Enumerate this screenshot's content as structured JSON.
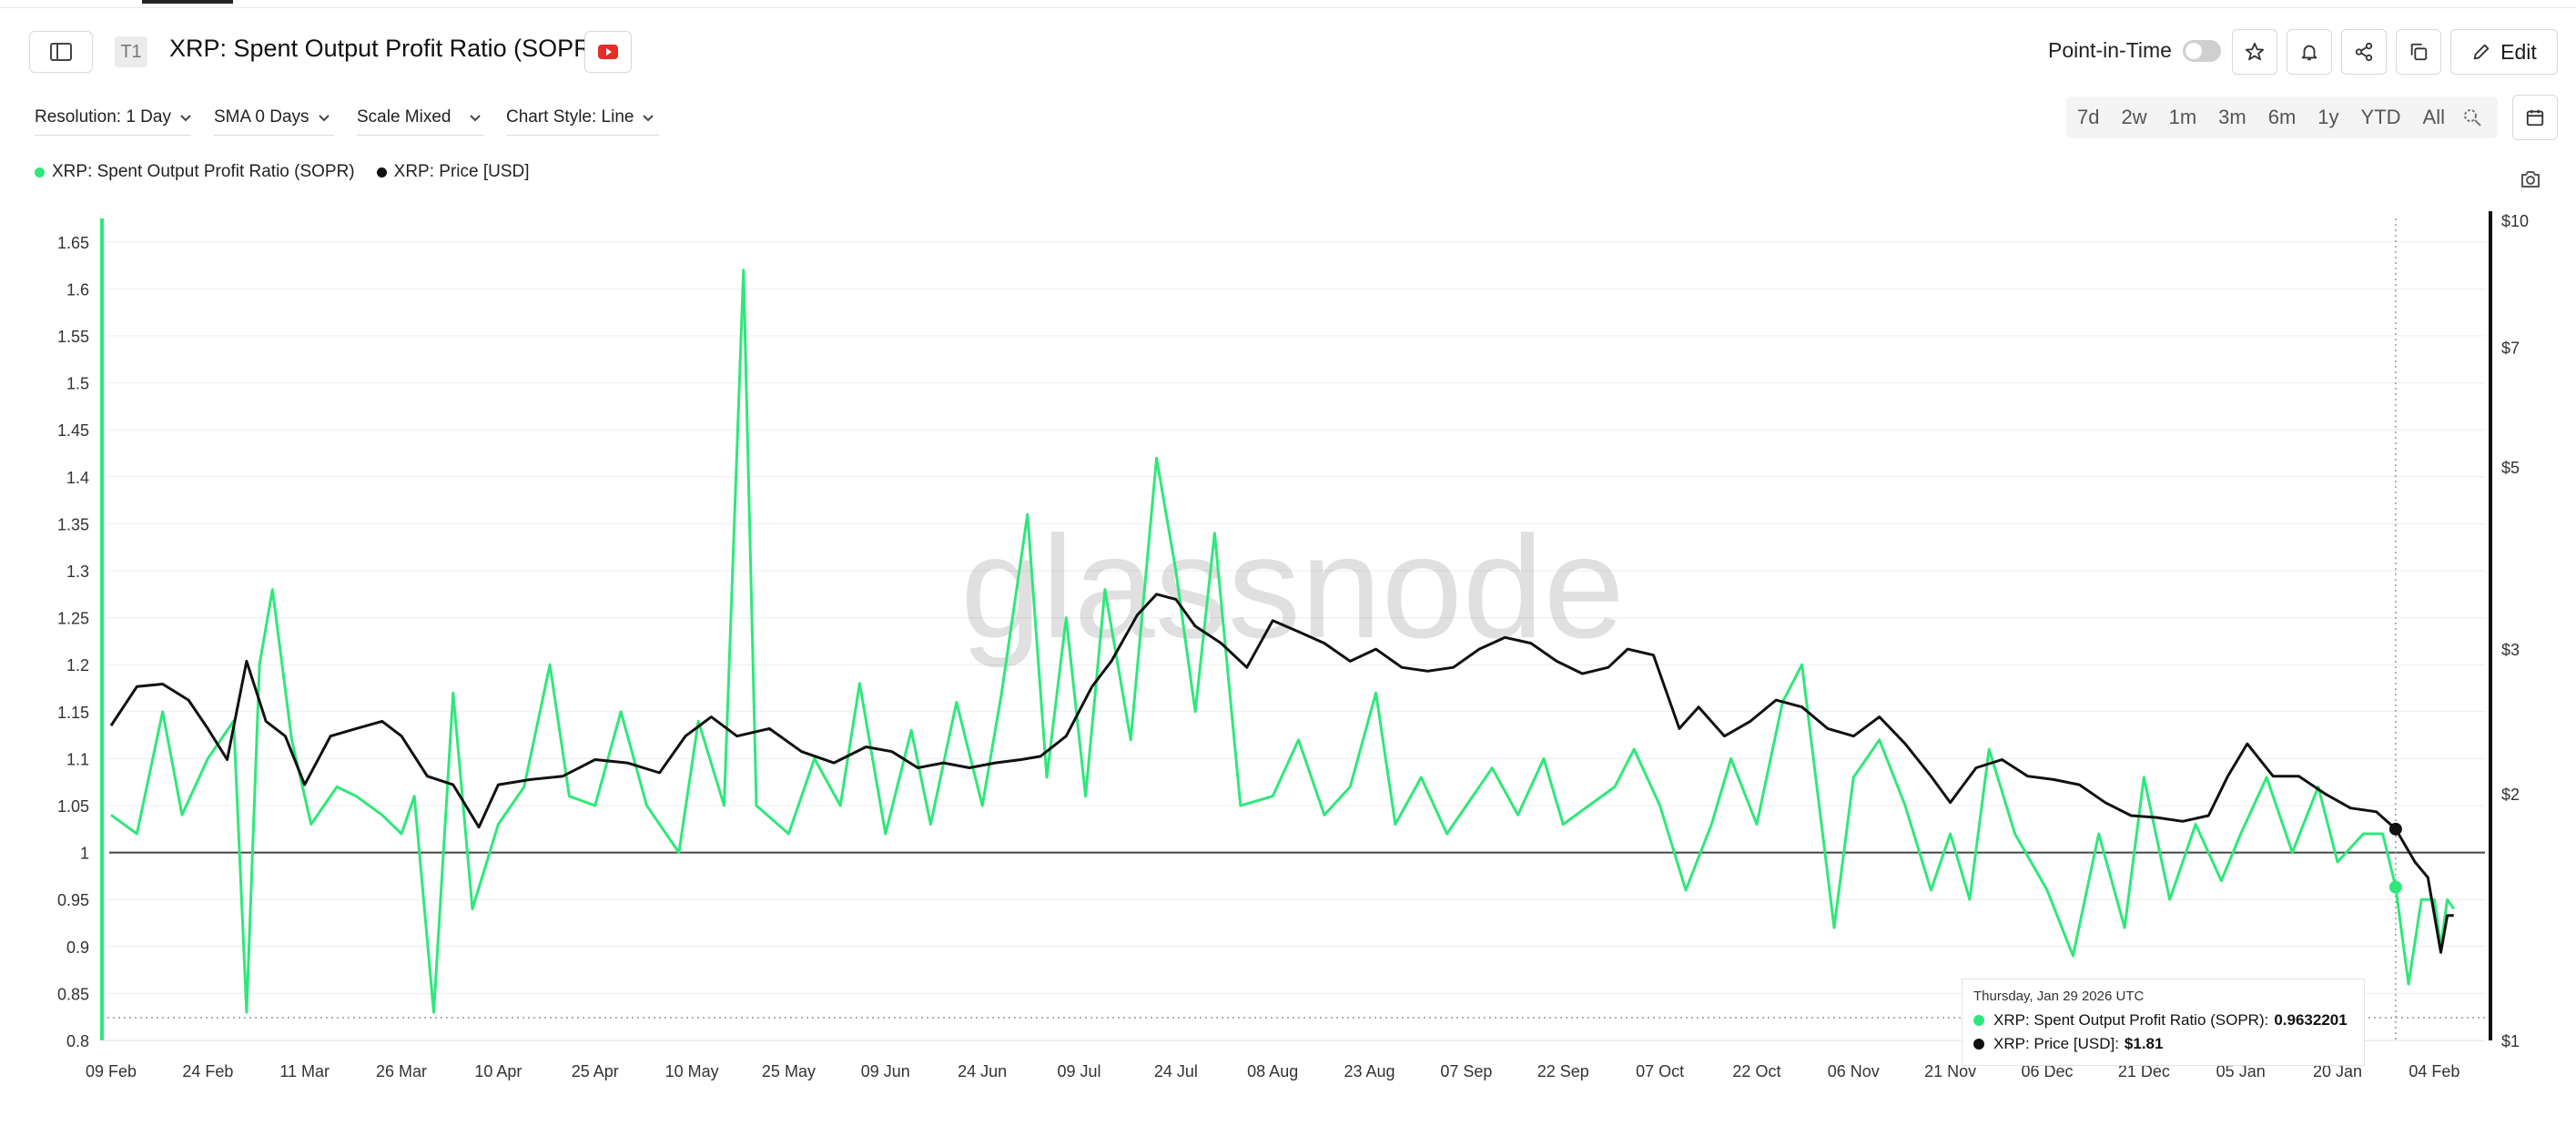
{
  "header": {
    "badge": "T1",
    "title": "XRP: Spent Output Profit Ratio (SOPR)",
    "point_in_time_label": "Point-in-Time",
    "edit_label": "Edit"
  },
  "toolbar": {
    "resolution": "Resolution: 1 Day",
    "sma": "SMA 0 Days",
    "scale": "Scale Mixed",
    "chart_style": "Chart Style: Line"
  },
  "ranges": [
    "7d",
    "2w",
    "1m",
    "3m",
    "6m",
    "1y",
    "YTD",
    "All"
  ],
  "watermark": "glassnode",
  "tooltip": {
    "date": "Thursday, Jan 29 2026 UTC",
    "sopr_label": "XRP: Spent Output Profit Ratio (SOPR):",
    "sopr_value": "0.9632201",
    "price_label": "XRP: Price [USD]:",
    "price_value": "$1.81"
  },
  "colors": {
    "sopr": "#2ee87a",
    "price": "#111111",
    "baseline": "#444444"
  },
  "chart_data": {
    "type": "line",
    "x_axis": {
      "type": "date",
      "tick_labels": [
        "09 Feb",
        "24 Feb",
        "11 Mar",
        "26 Mar",
        "10 Apr",
        "25 Apr",
        "10 May",
        "25 May",
        "09 Jun",
        "24 Jun",
        "09 Jul",
        "24 Jul",
        "08 Aug",
        "23 Aug",
        "07 Sep",
        "22 Sep",
        "07 Oct",
        "22 Oct",
        "06 Nov",
        "21 Nov",
        "06 Dec",
        "21 Dec",
        "05 Jan",
        "20 Jan",
        "04 Feb"
      ]
    },
    "y_left": {
      "ticks": [
        "0.8",
        "0.85",
        "0.9",
        "0.95",
        "1",
        "1.05",
        "1.1",
        "1.15",
        "1.2",
        "1.25",
        "1.3",
        "1.35",
        "1.4",
        "1.45",
        "1.5",
        "1.55",
        "1.6",
        "1.65"
      ],
      "ylim": [
        0.8,
        1.65
      ]
    },
    "y_right": {
      "scale": "log",
      "ticks": [
        "$1",
        "$2",
        "$3",
        "$5",
        "$7",
        "$10"
      ],
      "ylim": [
        1,
        10
      ]
    },
    "reference_line": 1,
    "series": [
      {
        "name": "XRP: Spent Output Profit Ratio (SOPR)",
        "axis": "left",
        "color": "#2ee87a",
        "points": [
          [
            "09 Feb",
            1.04
          ],
          [
            "13 Feb",
            1.02
          ],
          [
            "17 Feb",
            1.15
          ],
          [
            "20 Feb",
            1.04
          ],
          [
            "24 Feb",
            1.1
          ],
          [
            "28 Feb",
            1.14
          ],
          [
            "02 Mar",
            0.83
          ],
          [
            "04 Mar",
            1.2
          ],
          [
            "06 Mar",
            1.28
          ],
          [
            "09 Mar",
            1.12
          ],
          [
            "12 Mar",
            1.03
          ],
          [
            "16 Mar",
            1.07
          ],
          [
            "19 Mar",
            1.06
          ],
          [
            "23 Mar",
            1.04
          ],
          [
            "26 Mar",
            1.02
          ],
          [
            "28 Mar",
            1.06
          ],
          [
            "31 Mar",
            0.83
          ],
          [
            "03 Apr",
            1.17
          ],
          [
            "06 Apr",
            0.94
          ],
          [
            "10 Apr",
            1.03
          ],
          [
            "14 Apr",
            1.07
          ],
          [
            "18 Apr",
            1.2
          ],
          [
            "21 Apr",
            1.06
          ],
          [
            "25 Apr",
            1.05
          ],
          [
            "29 Apr",
            1.15
          ],
          [
            "03 May",
            1.05
          ],
          [
            "08 May",
            1.0
          ],
          [
            "11 May",
            1.14
          ],
          [
            "15 May",
            1.05
          ],
          [
            "18 May",
            1.62
          ],
          [
            "20 May",
            1.05
          ],
          [
            "25 May",
            1.02
          ],
          [
            "29 May",
            1.1
          ],
          [
            "02 Jun",
            1.05
          ],
          [
            "05 Jun",
            1.18
          ],
          [
            "09 Jun",
            1.02
          ],
          [
            "13 Jun",
            1.13
          ],
          [
            "16 Jun",
            1.03
          ],
          [
            "20 Jun",
            1.16
          ],
          [
            "24 Jun",
            1.05
          ],
          [
            "27 Jun",
            1.17
          ],
          [
            "01 Jul",
            1.36
          ],
          [
            "04 Jul",
            1.08
          ],
          [
            "07 Jul",
            1.25
          ],
          [
            "10 Jul",
            1.06
          ],
          [
            "13 Jul",
            1.28
          ],
          [
            "17 Jul",
            1.12
          ],
          [
            "21 Jul",
            1.42
          ],
          [
            "24 Jul",
            1.3
          ],
          [
            "27 Jul",
            1.15
          ],
          [
            "30 Jul",
            1.34
          ],
          [
            "03 Aug",
            1.05
          ],
          [
            "08 Aug",
            1.06
          ],
          [
            "12 Aug",
            1.12
          ],
          [
            "16 Aug",
            1.04
          ],
          [
            "20 Aug",
            1.07
          ],
          [
            "24 Aug",
            1.17
          ],
          [
            "27 Aug",
            1.03
          ],
          [
            "31 Aug",
            1.08
          ],
          [
            "04 Sep",
            1.02
          ],
          [
            "07 Sep",
            1.05
          ],
          [
            "11 Sep",
            1.09
          ],
          [
            "15 Sep",
            1.04
          ],
          [
            "19 Sep",
            1.1
          ],
          [
            "22 Sep",
            1.03
          ],
          [
            "26 Sep",
            1.05
          ],
          [
            "30 Sep",
            1.07
          ],
          [
            "03 Oct",
            1.11
          ],
          [
            "07 Oct",
            1.05
          ],
          [
            "11 Oct",
            0.96
          ],
          [
            "15 Oct",
            1.03
          ],
          [
            "18 Oct",
            1.1
          ],
          [
            "22 Oct",
            1.03
          ],
          [
            "26 Oct",
            1.16
          ],
          [
            "29 Oct",
            1.2
          ],
          [
            "03 Nov",
            0.92
          ],
          [
            "06 Nov",
            1.08
          ],
          [
            "10 Nov",
            1.12
          ],
          [
            "14 Nov",
            1.05
          ],
          [
            "18 Nov",
            0.96
          ],
          [
            "21 Nov",
            1.02
          ],
          [
            "24 Nov",
            0.95
          ],
          [
            "27 Nov",
            1.11
          ],
          [
            "01 Dec",
            1.02
          ],
          [
            "06 Dec",
            0.96
          ],
          [
            "10 Dec",
            0.89
          ],
          [
            "14 Dec",
            1.02
          ],
          [
            "18 Dec",
            0.92
          ],
          [
            "21 Dec",
            1.08
          ],
          [
            "25 Dec",
            0.95
          ],
          [
            "29 Dec",
            1.03
          ],
          [
            "02 Jan",
            0.97
          ],
          [
            "05 Jan",
            1.02
          ],
          [
            "09 Jan",
            1.08
          ],
          [
            "13 Jan",
            1.0
          ],
          [
            "17 Jan",
            1.07
          ],
          [
            "20 Jan",
            0.99
          ],
          [
            "24 Jan",
            1.02
          ],
          [
            "27 Jan",
            1.02
          ],
          [
            "29 Jan",
            0.9632
          ],
          [
            "31 Jan",
            0.86
          ],
          [
            "02 Feb",
            0.95
          ],
          [
            "04 Feb",
            0.95
          ],
          [
            "05 Feb",
            0.9
          ],
          [
            "06 Feb",
            0.95
          ],
          [
            "07 Feb",
            0.94
          ]
        ]
      },
      {
        "name": "XRP: Price [USD]",
        "axis": "right",
        "color": "#111111",
        "points": [
          [
            "09 Feb",
            2.42
          ],
          [
            "13 Feb",
            2.7
          ],
          [
            "17 Feb",
            2.72
          ],
          [
            "21 Feb",
            2.6
          ],
          [
            "24 Feb",
            2.4
          ],
          [
            "27 Feb",
            2.2
          ],
          [
            "02 Mar",
            2.9
          ],
          [
            "05 Mar",
            2.45
          ],
          [
            "08 Mar",
            2.35
          ],
          [
            "11 Mar",
            2.05
          ],
          [
            "15 Mar",
            2.35
          ],
          [
            "19 Mar",
            2.4
          ],
          [
            "23 Mar",
            2.45
          ],
          [
            "26 Mar",
            2.35
          ],
          [
            "30 Mar",
            2.1
          ],
          [
            "03 Apr",
            2.05
          ],
          [
            "07 Apr",
            1.82
          ],
          [
            "10 Apr",
            2.05
          ],
          [
            "15 Apr",
            2.08
          ],
          [
            "20 Apr",
            2.1
          ],
          [
            "25 Apr",
            2.2
          ],
          [
            "30 Apr",
            2.18
          ],
          [
            "05 May",
            2.12
          ],
          [
            "09 May",
            2.35
          ],
          [
            "13 May",
            2.48
          ],
          [
            "17 May",
            2.35
          ],
          [
            "22 May",
            2.4
          ],
          [
            "27 May",
            2.25
          ],
          [
            "01 Jun",
            2.18
          ],
          [
            "06 Jun",
            2.28
          ],
          [
            "10 Jun",
            2.25
          ],
          [
            "14 Jun",
            2.15
          ],
          [
            "18 Jun",
            2.18
          ],
          [
            "22 Jun",
            2.15
          ],
          [
            "26 Jun",
            2.18
          ],
          [
            "30 Jun",
            2.2
          ],
          [
            "03 Jul",
            2.22
          ],
          [
            "07 Jul",
            2.35
          ],
          [
            "11 Jul",
            2.7
          ],
          [
            "14 Jul",
            2.9
          ],
          [
            "18 Jul",
            3.3
          ],
          [
            "21 Jul",
            3.5
          ],
          [
            "24 Jul",
            3.45
          ],
          [
            "27 Jul",
            3.2
          ],
          [
            "31 Jul",
            3.05
          ],
          [
            "04 Aug",
            2.85
          ],
          [
            "08 Aug",
            3.25
          ],
          [
            "12 Aug",
            3.15
          ],
          [
            "16 Aug",
            3.05
          ],
          [
            "20 Aug",
            2.9
          ],
          [
            "24 Aug",
            3.0
          ],
          [
            "28 Aug",
            2.85
          ],
          [
            "01 Sep",
            2.82
          ],
          [
            "05 Sep",
            2.85
          ],
          [
            "09 Sep",
            3.0
          ],
          [
            "13 Sep",
            3.1
          ],
          [
            "17 Sep",
            3.05
          ],
          [
            "21 Sep",
            2.9
          ],
          [
            "25 Sep",
            2.8
          ],
          [
            "29 Sep",
            2.85
          ],
          [
            "02 Oct",
            3.0
          ],
          [
            "06 Oct",
            2.95
          ],
          [
            "10 Oct",
            2.4
          ],
          [
            "13 Oct",
            2.55
          ],
          [
            "17 Oct",
            2.35
          ],
          [
            "21 Oct",
            2.45
          ],
          [
            "25 Oct",
            2.6
          ],
          [
            "29 Oct",
            2.55
          ],
          [
            "02 Nov",
            2.4
          ],
          [
            "06 Nov",
            2.35
          ],
          [
            "10 Nov",
            2.48
          ],
          [
            "14 Nov",
            2.3
          ],
          [
            "18 Nov",
            2.1
          ],
          [
            "21 Nov",
            1.95
          ],
          [
            "25 Nov",
            2.15
          ],
          [
            "29 Nov",
            2.2
          ],
          [
            "03 Dec",
            2.1
          ],
          [
            "07 Dec",
            2.08
          ],
          [
            "11 Dec",
            2.05
          ],
          [
            "15 Dec",
            1.95
          ],
          [
            "19 Dec",
            1.88
          ],
          [
            "23 Dec",
            1.87
          ],
          [
            "27 Dec",
            1.85
          ],
          [
            "31 Dec",
            1.88
          ],
          [
            "03 Jan",
            2.1
          ],
          [
            "06 Jan",
            2.3
          ],
          [
            "10 Jan",
            2.1
          ],
          [
            "14 Jan",
            2.1
          ],
          [
            "18 Jan",
            2.0
          ],
          [
            "22 Jan",
            1.92
          ],
          [
            "26 Jan",
            1.9
          ],
          [
            "29 Jan",
            1.81
          ],
          [
            "01 Feb",
            1.65
          ],
          [
            "03 Feb",
            1.58
          ],
          [
            "05 Feb",
            1.28
          ],
          [
            "06 Feb",
            1.42
          ],
          [
            "07 Feb",
            1.42
          ]
        ]
      }
    ]
  }
}
